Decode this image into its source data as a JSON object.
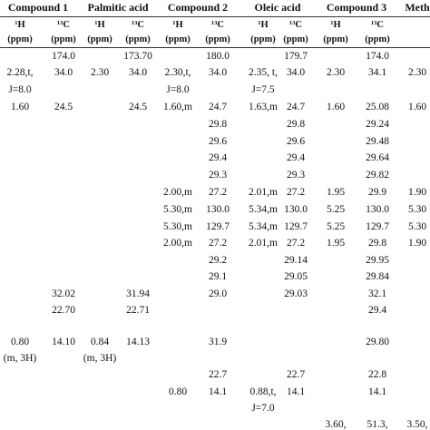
{
  "table": {
    "groups": [
      "Compound 1",
      "Palmitic acid",
      "Compound 2",
      "Oleic acid",
      "Compound 3",
      "Methy"
    ],
    "nucleus": [
      "¹H",
      "¹³C",
      "¹H",
      "¹³C",
      "¹H",
      "¹³C",
      "¹H",
      "¹³C",
      "¹H",
      "¹³C",
      null
    ],
    "units": [
      "(ppm)",
      "(ppm)",
      "(ppm)",
      "(ppm)",
      "(ppm)",
      "(ppm)",
      "(ppm)",
      "(ppm)",
      "(ppm)",
      "(ppm)",
      null
    ],
    "rows": [
      [
        null,
        "174.0",
        null,
        "173.70",
        null,
        "180.0",
        null,
        "179.7",
        null,
        "174.0",
        null
      ],
      [
        "2.28,t,",
        "34.0",
        "2.30",
        "34.0",
        "2.30,t,",
        "34.0",
        "2.35, t,",
        "34.0",
        "2.30",
        "34.1",
        "2.30"
      ],
      [
        "J=8.0",
        null,
        null,
        null,
        "J=8.0",
        null,
        "J=7.5",
        null,
        null,
        null,
        null
      ],
      [
        "1.60",
        "24.5",
        null,
        "24.5",
        "1.60,m",
        "24.7",
        "1.63,m",
        "24.7",
        "1.60",
        "25.08",
        "1.60"
      ],
      [
        null,
        null,
        null,
        null,
        null,
        "29.8",
        null,
        "29.8",
        null,
        "29.24",
        null
      ],
      [
        null,
        null,
        null,
        null,
        null,
        "29.6",
        null,
        "29.6",
        null,
        "29.48",
        null
      ],
      [
        null,
        null,
        null,
        null,
        null,
        "29.4",
        null,
        "29.4",
        null,
        "29.64",
        null
      ],
      [
        null,
        null,
        null,
        null,
        null,
        "29.3",
        null,
        "29.3",
        null,
        "29.82",
        null
      ],
      [
        null,
        null,
        null,
        null,
        "2.00,m",
        "27.2",
        "2.01,m",
        "27.2",
        "1.95",
        "29.9",
        "1.90"
      ],
      [
        null,
        null,
        null,
        null,
        "5.30,m",
        "130.0",
        "5.34,m",
        "130.0",
        "5.25",
        "130.0",
        "5.30"
      ],
      [
        null,
        null,
        null,
        null,
        "5.30,m",
        "129.7",
        "5.34,m",
        "129.7",
        "5.25",
        "129.7",
        "5.30"
      ],
      [
        null,
        null,
        null,
        null,
        "2.00,m",
        "27.2",
        "2.01,m",
        "27.2",
        "1.95",
        "29.8",
        "1.90"
      ],
      [
        null,
        null,
        null,
        null,
        null,
        "29.2",
        null,
        "29.14",
        null,
        "29.95",
        null
      ],
      [
        null,
        null,
        null,
        null,
        null,
        "29.1",
        null,
        "29.05",
        null,
        "29.84",
        null
      ],
      [
        null,
        "32.02",
        null,
        "31.94",
        null,
        "29.0",
        null,
        "29.03",
        null,
        "32.1",
        null
      ],
      [
        null,
        "22.70",
        null,
        "22.71",
        null,
        null,
        null,
        null,
        null,
        "29.4",
        null
      ],
      [
        "0.80",
        "14.10",
        "0.84",
        "14.13",
        null,
        "31.9",
        null,
        null,
        null,
        "29.80",
        null
      ],
      [
        "(m, 3H)",
        null,
        "(m, 3H)",
        null,
        null,
        null,
        null,
        null,
        null,
        null,
        null
      ],
      [
        null,
        null,
        null,
        null,
        null,
        "22.7",
        null,
        "22.7",
        null,
        "22.8",
        null
      ],
      [
        null,
        null,
        null,
        null,
        "0.80",
        "14.1",
        "0.88,t,",
        "14.1",
        null,
        "14.1",
        null
      ],
      [
        null,
        null,
        null,
        null,
        null,
        null,
        "J=7.0",
        null,
        null,
        null,
        null
      ],
      [
        null,
        null,
        null,
        null,
        null,
        null,
        null,
        null,
        "3.60,",
        "51.3,",
        "3.50,"
      ]
    ]
  }
}
